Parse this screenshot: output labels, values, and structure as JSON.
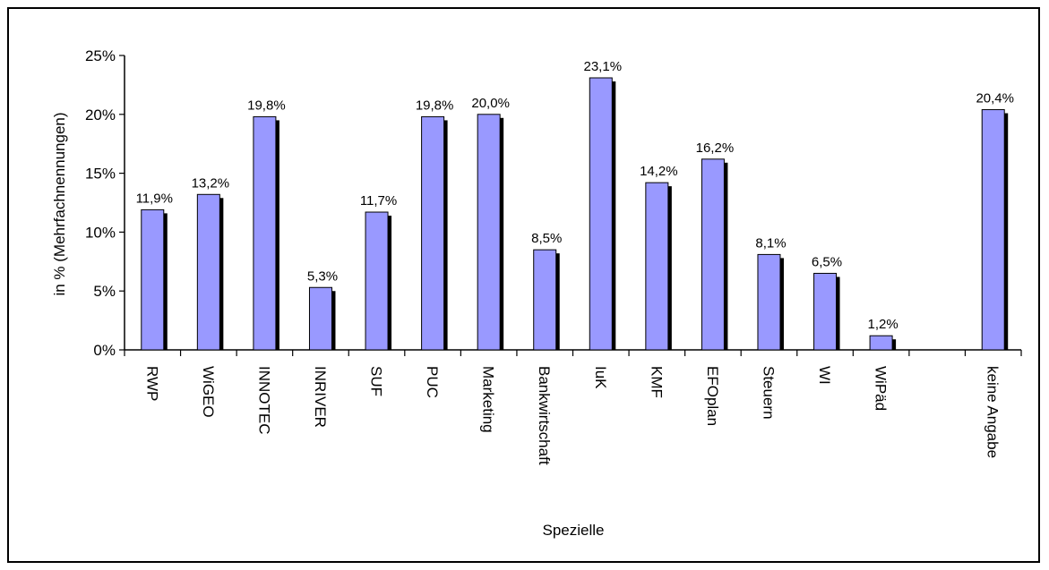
{
  "chart_data": {
    "type": "bar",
    "title": "",
    "xlabel": "Spezielle",
    "ylabel": "in % (Mehrfachnennungen)",
    "ylim": [
      0,
      25
    ],
    "yticks": [
      "0%",
      "5%",
      "10%",
      "15%",
      "20%",
      "25%"
    ],
    "categories": [
      "RWP",
      "WiGEO",
      "INNOTEC",
      "INRIVER",
      "SUF",
      "PUC",
      "Marketing",
      "Bankwirtschaft",
      "IuK",
      "KMF",
      "EFOplan",
      "Steuern",
      "WI",
      "WiPäd",
      "",
      "keine Angabe"
    ],
    "values": [
      11.9,
      13.2,
      19.8,
      5.3,
      11.7,
      19.8,
      20.0,
      8.5,
      23.1,
      14.2,
      16.2,
      8.1,
      6.5,
      1.2,
      null,
      20.4
    ],
    "data_labels": [
      "11,9%",
      "13,2%",
      "19,8%",
      "5,3%",
      "11,7%",
      "19,8%",
      "20,0%",
      "8,5%",
      "23,1%",
      "14,2%",
      "16,2%",
      "8,1%",
      "6,5%",
      "1,2%",
      "",
      "20,4%"
    ],
    "bar_color": "#9999ff",
    "shadow_color": "#000000",
    "grid": false,
    "legend": "none"
  }
}
